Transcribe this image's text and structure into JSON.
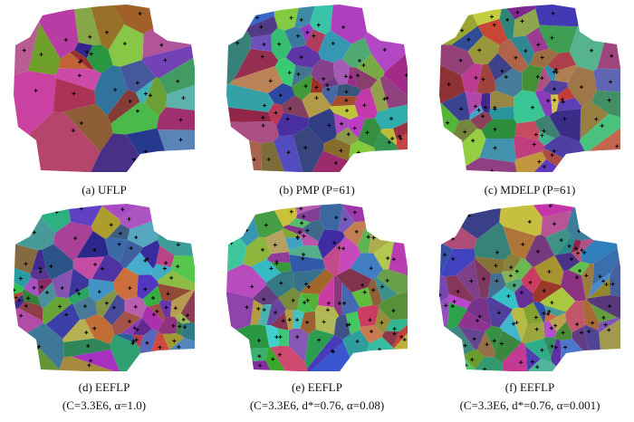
{
  "panels": [
    {
      "caption": [
        "(a) UFLP"
      ],
      "sites": 30
    },
    {
      "caption": [
        "(b) PMP (P=61)"
      ],
      "sites": 61
    },
    {
      "caption": [
        "(c) MDELP (P=61)"
      ],
      "sites": 61
    },
    {
      "caption": [
        "(d) EEFLP",
        "(C=3.3E6, α=1.0)"
      ],
      "sites": 75
    },
    {
      "caption": [
        "(e) EEFLP",
        "(C=3.3E6, d*=0.76, α=0.08)"
      ],
      "sites": 80
    },
    {
      "caption": [
        "(f) EEFLP",
        "(C=3.3E6, d*=0.76, α=0.001)"
      ],
      "sites": 80
    }
  ]
}
